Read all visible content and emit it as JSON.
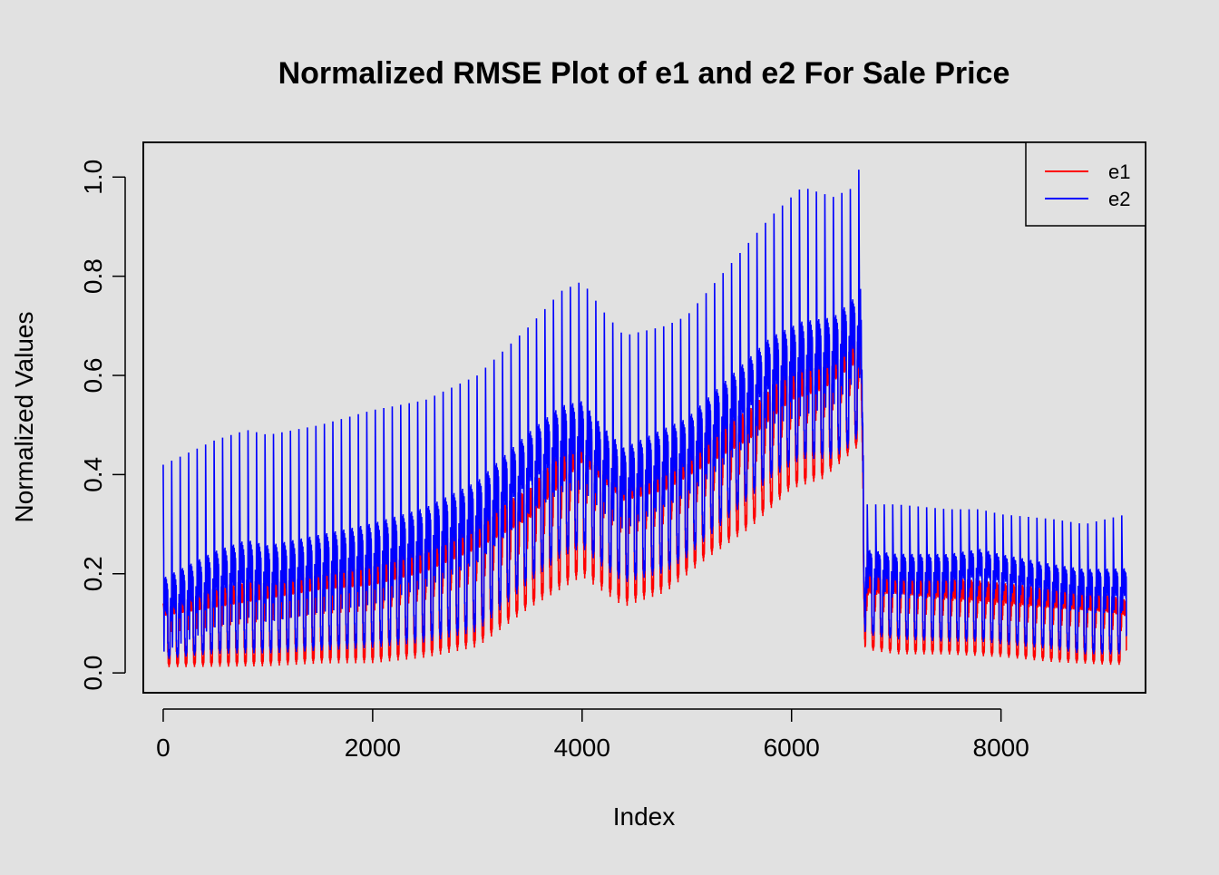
{
  "chart_data": {
    "type": "line",
    "title": "Normalized RMSE Plot of e1 and e2 For Sale Price",
    "xlabel": "Index",
    "ylabel": "Normalized Values",
    "xlim": [
      -190,
      9380
    ],
    "ylim": [
      -0.04,
      1.07
    ],
    "x_ticks": [
      0,
      2000,
      4000,
      6000,
      8000
    ],
    "y_ticks": [
      0.0,
      0.2,
      0.4,
      0.6,
      0.8,
      1.0
    ],
    "x_tick_labels": [
      "0",
      "2000",
      "4000",
      "6000",
      "8000"
    ],
    "y_tick_labels": [
      "0.0",
      "0.2",
      "0.4",
      "0.6",
      "0.8",
      "1.0"
    ],
    "grid": false,
    "legend_position": "top-right",
    "n_points": 9200,
    "cycle_length": 81,
    "series": [
      {
        "name": "e1",
        "color": "#ff0000",
        "envelope": {
          "x": [
            0,
            500,
            1000,
            1500,
            2000,
            2500,
            3000,
            3500,
            4000,
            4400,
            4800,
            5200,
            5600,
            6000,
            6300,
            6660,
            6700,
            7000,
            7500,
            8000,
            8500,
            9000,
            9200
          ],
          "high": [
            0.14,
            0.17,
            0.19,
            0.21,
            0.22,
            0.27,
            0.31,
            0.4,
            0.5,
            0.42,
            0.44,
            0.5,
            0.56,
            0.65,
            0.66,
            0.72,
            0.24,
            0.23,
            0.23,
            0.22,
            0.2,
            0.18,
            0.16
          ],
          "mid": [
            0.13,
            0.15,
            0.17,
            0.19,
            0.2,
            0.23,
            0.28,
            0.34,
            0.46,
            0.38,
            0.4,
            0.45,
            0.5,
            0.58,
            0.6,
            0.66,
            0.18,
            0.18,
            0.17,
            0.16,
            0.15,
            0.14,
            0.13
          ],
          "low": [
            0.005,
            0.005,
            0.005,
            0.01,
            0.01,
            0.02,
            0.04,
            0.12,
            0.18,
            0.12,
            0.15,
            0.22,
            0.28,
            0.36,
            0.38,
            0.45,
            0.04,
            0.03,
            0.03,
            0.025,
            0.015,
            0.01,
            0.01
          ]
        }
      },
      {
        "name": "e2",
        "color": "#0000ff",
        "envelope": {
          "x": [
            0,
            200,
            500,
            800,
            1000,
            1500,
            2000,
            2500,
            3000,
            3500,
            3800,
            4000,
            4200,
            4400,
            4800,
            5000,
            5400,
            5800,
            6100,
            6400,
            6600,
            6660,
            6700,
            7000,
            7500,
            7800,
            8000,
            8500,
            8800,
            9000,
            9200
          ],
          "high": [
            0.42,
            0.44,
            0.47,
            0.49,
            0.48,
            0.5,
            0.53,
            0.55,
            0.6,
            0.7,
            0.77,
            0.79,
            0.73,
            0.68,
            0.7,
            0.72,
            0.82,
            0.92,
            0.98,
            0.96,
            0.98,
            1.03,
            0.34,
            0.34,
            0.33,
            0.33,
            0.32,
            0.31,
            0.3,
            0.31,
            0.32
          ],
          "mid": [
            0.15,
            0.17,
            0.2,
            0.22,
            0.21,
            0.23,
            0.25,
            0.28,
            0.33,
            0.43,
            0.48,
            0.49,
            0.44,
            0.4,
            0.44,
            0.46,
            0.54,
            0.62,
            0.65,
            0.66,
            0.7,
            0.72,
            0.22,
            0.21,
            0.21,
            0.22,
            0.21,
            0.19,
            0.18,
            0.18,
            0.18
          ],
          "low": [
            0.02,
            0.025,
            0.03,
            0.03,
            0.03,
            0.035,
            0.04,
            0.05,
            0.07,
            0.17,
            0.22,
            0.24,
            0.2,
            0.17,
            0.19,
            0.22,
            0.3,
            0.38,
            0.42,
            0.42,
            0.45,
            0.48,
            0.07,
            0.06,
            0.055,
            0.055,
            0.05,
            0.04,
            0.03,
            0.03,
            0.03
          ]
        }
      }
    ]
  }
}
